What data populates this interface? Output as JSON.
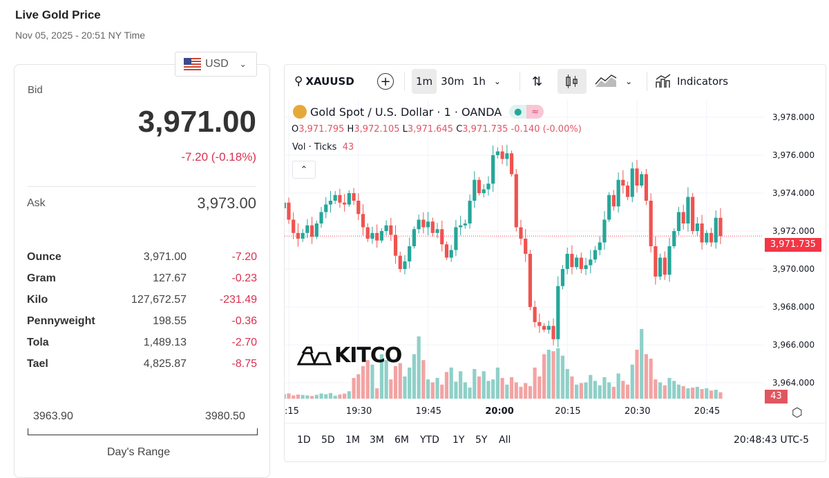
{
  "header": {
    "title": "Live Gold Price",
    "subtitle": "Nov 05, 2025 - 20:51 NY Time"
  },
  "currency": {
    "selected": "USD"
  },
  "quote": {
    "bid_label": "Bid",
    "bid": "3,971.00",
    "change": "-7.20 (-0.18%)",
    "ask_label": "Ask",
    "ask": "3,973.00"
  },
  "units": [
    {
      "unit": "Ounce",
      "price": "3,971.00",
      "change": "-7.20"
    },
    {
      "unit": "Gram",
      "price": "127.67",
      "change": "-0.23"
    },
    {
      "unit": "Kilo",
      "price": "127,672.57",
      "change": "-231.49"
    },
    {
      "unit": "Pennyweight",
      "price": "198.55",
      "change": "-0.36"
    },
    {
      "unit": "Tola",
      "price": "1,489.13",
      "change": "-2.70"
    },
    {
      "unit": "Tael",
      "price": "4,825.87",
      "change": "-8.75"
    }
  ],
  "range": {
    "low": "3963.90",
    "high": "3980.50",
    "label": "Day's Range"
  },
  "toolbar": {
    "symbol": "XAUUSD",
    "intervals": [
      "1m",
      "30m",
      "1h"
    ],
    "active_interval": "1m",
    "indicators": "Indicators"
  },
  "legend": {
    "title": "Gold Spot / U.S. Dollar · 1 · OANDA",
    "o_label": "O",
    "o": "3,971.795",
    "h_label": "H",
    "h": "3,972.105",
    "l_label": "L",
    "l": "3,971.645",
    "c_label": "C",
    "c": "3,971.735",
    "chg": "-0.140 (-0.00%)",
    "vol_label": "Vol · Ticks",
    "vol": "43"
  },
  "logo": "KITCO",
  "current_price_label": "3,971.735",
  "current_volume_label": "43",
  "ranges": [
    "1D",
    "5D",
    "1M",
    "3M",
    "6M",
    "YTD",
    "1Y",
    "5Y",
    "All"
  ],
  "clock": "20:48:43 UTC-5",
  "colors": {
    "up": "#26a69a",
    "down": "#ef5350",
    "up_vol": "#8fd0c8",
    "down_vol": "#f3a3a3"
  },
  "chart_data": {
    "type": "candlestick",
    "interval_minutes": 1,
    "start_time": "19:14",
    "ylim": [
      3963,
      3979
    ],
    "price_ticks": [
      "3,978.000",
      "3,976.000",
      "3,974.000",
      "3,972.000",
      "3,970.000",
      "3,968.000",
      "3,966.000",
      "3,964.000"
    ],
    "price_tick_values": [
      3978,
      3976,
      3974,
      3972,
      3970,
      3968,
      3966,
      3964
    ],
    "time_ticks": [
      ":15",
      "19:30",
      "19:45",
      "20:00",
      "20:15",
      "20:30",
      "20:45"
    ],
    "time_tick_minutes": [
      1,
      16,
      31,
      46,
      61,
      76,
      91
    ],
    "first_open": 3973.2,
    "close": [
      3973.5,
      3972.6,
      3971.9,
      3971.6,
      3971.9,
      3972.3,
      3971.7,
      3972.4,
      3973.0,
      3973.4,
      3973.6,
      3973.9,
      3973.5,
      3973.4,
      3974.0,
      3973.6,
      3972.9,
      3972.2,
      3971.6,
      3971.9,
      3971.5,
      3972.0,
      3972.3,
      3971.8,
      3970.7,
      3970.0,
      3970.4,
      3971.2,
      3972.1,
      3972.6,
      3972.2,
      3972.5,
      3971.9,
      3972.1,
      3971.3,
      3970.6,
      3971.0,
      3972.2,
      3972.3,
      3972.4,
      3973.6,
      3974.7,
      3974.0,
      3974.2,
      3974.5,
      3976.0,
      3976.2,
      3975.8,
      3976.1,
      3975.0,
      3972.2,
      3971.6,
      3970.8,
      3968.0,
      3967.2,
      3967.0,
      3966.8,
      3967.0,
      3966.3,
      3969.1,
      3970.0,
      3970.8,
      3970.1,
      3970.6,
      3970.0,
      3970.2,
      3970.5,
      3971.0,
      3971.4,
      3972.6,
      3973.9,
      3973.3,
      3974.7,
      3974.4,
      3973.8,
      3975.3,
      3974.4,
      3975.0,
      3973.6,
      3971.2,
      3969.6,
      3970.6,
      3969.7,
      3971.2,
      3972.0,
      3973.0,
      3972.4,
      3973.8,
      3972.0,
      3972.4,
      3971.4,
      3971.9,
      3971.4,
      3972.7,
      3971.735
    ],
    "volume": [
      30,
      35,
      22,
      28,
      25,
      22,
      18,
      26,
      35,
      30,
      38,
      20,
      28,
      34,
      50,
      140,
      165,
      220,
      260,
      230,
      70,
      300,
      260,
      130,
      220,
      240,
      150,
      210,
      300,
      420,
      260,
      130,
      110,
      140,
      95,
      180,
      210,
      115,
      185,
      110,
      75,
      200,
      150,
      185,
      120,
      130,
      210,
      140,
      95,
      145,
      110,
      80,
      105,
      85,
      210,
      150,
      300,
      330,
      320,
      340,
      290,
      200,
      150,
      95,
      105,
      110,
      160,
      120,
      90,
      145,
      110,
      80,
      170,
      120,
      95,
      230,
      330,
      470,
      300,
      270,
      130,
      110,
      90,
      140,
      120,
      95,
      85,
      70,
      75,
      80,
      65,
      70,
      55,
      60,
      43
    ]
  }
}
